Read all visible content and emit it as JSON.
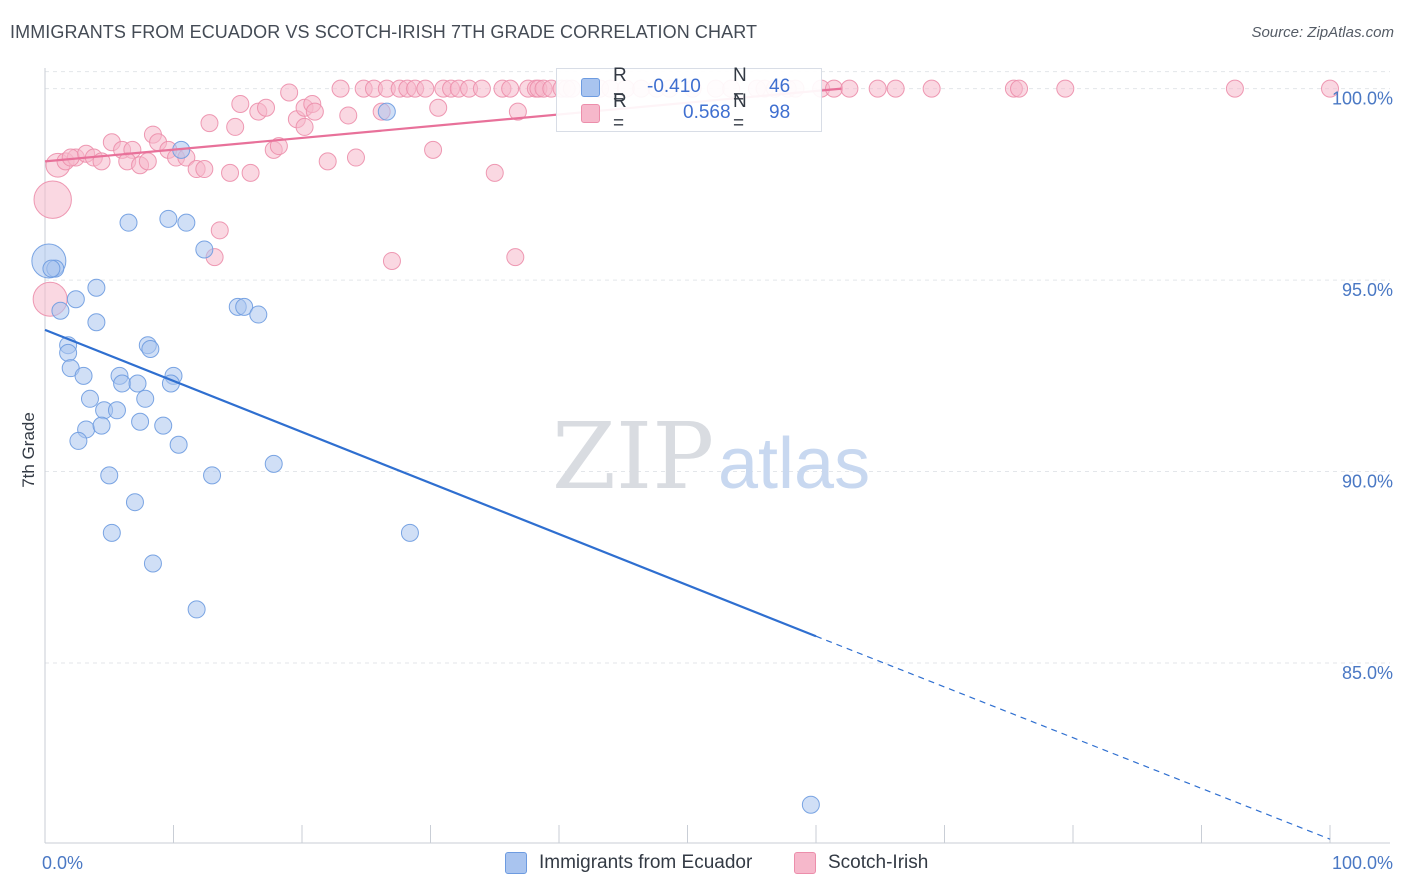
{
  "header": {
    "title": "IMMIGRANTS FROM ECUADOR VS SCOTCH-IRISH 7TH GRADE CORRELATION CHART",
    "source": "Source: ZipAtlas.com"
  },
  "watermark": {
    "zip": "ZIP",
    "atlas": "atlas"
  },
  "legend": {
    "rows": [
      {
        "label": "R =",
        "r": "-0.410",
        "n_label": "N =",
        "n": "46"
      },
      {
        "label": "R =",
        "r": "0.568",
        "n_label": "N =",
        "n": "98"
      }
    ]
  },
  "colors": {
    "ecuador_fill": "#a9c4ef",
    "ecuador_stroke": "#6d9be0",
    "ecuador_line": "#2f6fd0",
    "scotch_fill": "#f6b8cb",
    "scotch_stroke": "#ec8eab",
    "scotch_line": "#e8719a",
    "tick_label": "#4a78c4",
    "grid": "#e3e6ea"
  },
  "chart_data": {
    "type": "scatter",
    "title": "IMMIGRANTS FROM ECUADOR VS SCOTCH-IRISH 7TH GRADE CORRELATION CHART",
    "xlabel": "",
    "ylabel": "7th Grade",
    "xlim": [
      0,
      100
    ],
    "ylim": [
      80.3,
      100.8
    ],
    "x_tick_labels": [
      "0.0%",
      "100.0%"
    ],
    "y_ticks": [
      85,
      90,
      95,
      100
    ],
    "y_tick_labels": [
      "85.0%",
      "90.0%",
      "95.0%",
      "100.0%"
    ],
    "grid": true,
    "legend_position": "bottom-center",
    "series": [
      {
        "name": "Immigrants from Ecuador",
        "r": -0.41,
        "n": 46,
        "trend": {
          "x0": 0,
          "y0": 93.7,
          "x1": 60,
          "y1": 85.7,
          "dashed_to_x": 100,
          "dashed_to_y": 80.4
        },
        "points": [
          [
            0.3,
            95.5,
            2.0
          ],
          [
            0.8,
            95.3,
            1.0
          ],
          [
            0.5,
            95.3,
            1.0
          ],
          [
            1.2,
            94.2,
            1.0
          ],
          [
            2.4,
            94.5,
            1.0
          ],
          [
            4.0,
            94.8,
            1.0
          ],
          [
            4.0,
            93.9,
            1.0
          ],
          [
            1.8,
            93.3,
            1.0
          ],
          [
            1.8,
            93.1,
            1.0
          ],
          [
            2.0,
            92.7,
            1.0
          ],
          [
            3.0,
            92.5,
            1.0
          ],
          [
            5.8,
            92.5,
            1.0
          ],
          [
            6.0,
            92.3,
            1.0
          ],
          [
            7.2,
            92.3,
            1.0
          ],
          [
            3.5,
            91.9,
            1.0
          ],
          [
            7.8,
            91.9,
            1.0
          ],
          [
            4.6,
            91.6,
            1.0
          ],
          [
            5.6,
            91.6,
            1.0
          ],
          [
            7.4,
            91.3,
            1.0
          ],
          [
            9.2,
            91.2,
            1.0
          ],
          [
            3.2,
            91.1,
            1.0
          ],
          [
            4.4,
            91.2,
            1.0
          ],
          [
            2.6,
            90.8,
            1.0
          ],
          [
            10.4,
            90.7,
            1.0
          ],
          [
            5.0,
            89.9,
            1.0
          ],
          [
            13.0,
            89.9,
            1.0
          ],
          [
            7.0,
            89.2,
            1.0
          ],
          [
            5.2,
            88.4,
            1.0
          ],
          [
            8.4,
            87.6,
            1.0
          ],
          [
            11.8,
            86.4,
            1.0
          ],
          [
            6.5,
            96.5,
            1.0
          ],
          [
            9.6,
            96.6,
            1.0
          ],
          [
            11.0,
            96.5,
            1.0
          ],
          [
            12.4,
            95.8,
            1.0
          ],
          [
            15.0,
            94.3,
            1.0
          ],
          [
            15.5,
            94.3,
            1.0
          ],
          [
            16.6,
            94.1,
            1.0
          ],
          [
            8.0,
            93.3,
            1.0
          ],
          [
            8.2,
            93.2,
            1.0
          ],
          [
            10.0,
            92.5,
            1.0
          ],
          [
            9.8,
            92.3,
            1.0
          ],
          [
            10.6,
            98.4,
            1.0
          ],
          [
            26.6,
            99.4,
            1.0
          ],
          [
            17.8,
            90.2,
            1.0
          ],
          [
            28.4,
            88.4,
            1.0
          ],
          [
            59.6,
            81.3,
            1.0
          ]
        ]
      },
      {
        "name": "Scotch-Irish",
        "r": 0.568,
        "n": 98,
        "trend": {
          "x0": 0,
          "y0": 98.1,
          "x1": 62,
          "y1": 100.0
        },
        "points": [
          [
            0.6,
            97.1,
            2.2
          ],
          [
            0.4,
            94.5,
            2.0
          ],
          [
            1.0,
            98.0,
            1.4
          ],
          [
            1.6,
            98.1,
            1.0
          ],
          [
            2.4,
            98.2,
            1.0
          ],
          [
            2.0,
            98.2,
            1.0
          ],
          [
            3.2,
            98.3,
            1.0
          ],
          [
            3.8,
            98.2,
            1.0
          ],
          [
            4.4,
            98.1,
            1.0
          ],
          [
            5.2,
            98.6,
            1.0
          ],
          [
            6.0,
            98.4,
            1.0
          ],
          [
            6.8,
            98.4,
            1.0
          ],
          [
            6.4,
            98.1,
            1.0
          ],
          [
            7.4,
            98.0,
            1.0
          ],
          [
            8.0,
            98.1,
            1.0
          ],
          [
            8.4,
            98.8,
            1.0
          ],
          [
            8.8,
            98.6,
            1.0
          ],
          [
            9.6,
            98.4,
            1.0
          ],
          [
            10.2,
            98.2,
            1.0
          ],
          [
            11.0,
            98.2,
            1.0
          ],
          [
            11.8,
            97.9,
            1.0
          ],
          [
            12.4,
            97.9,
            1.0
          ],
          [
            12.8,
            99.1,
            1.0
          ],
          [
            13.6,
            96.3,
            1.0
          ],
          [
            13.2,
            95.6,
            1.0
          ],
          [
            14.4,
            97.8,
            1.0
          ],
          [
            14.8,
            99.0,
            1.0
          ],
          [
            15.2,
            99.6,
            1.0
          ],
          [
            16.0,
            97.8,
            1.0
          ],
          [
            16.6,
            99.4,
            1.0
          ],
          [
            17.2,
            99.5,
            1.0
          ],
          [
            17.8,
            98.4,
            1.0
          ],
          [
            18.2,
            98.5,
            1.0
          ],
          [
            19.0,
            99.9,
            1.0
          ],
          [
            19.6,
            99.2,
            1.0
          ],
          [
            20.2,
            99.0,
            1.0
          ],
          [
            20.2,
            99.5,
            1.0
          ],
          [
            20.8,
            99.6,
            1.0
          ],
          [
            21.0,
            99.4,
            1.0
          ],
          [
            22.0,
            98.1,
            1.0
          ],
          [
            23.0,
            100.0,
            1.0
          ],
          [
            23.6,
            99.3,
            1.0
          ],
          [
            24.2,
            98.2,
            1.0
          ],
          [
            24.8,
            100.0,
            1.0
          ],
          [
            25.6,
            100.0,
            1.0
          ],
          [
            26.2,
            99.4,
            1.0
          ],
          [
            26.6,
            100.0,
            1.0
          ],
          [
            27.0,
            95.5,
            1.0
          ],
          [
            27.6,
            100.0,
            1.0
          ],
          [
            28.2,
            100.0,
            1.0
          ],
          [
            28.8,
            100.0,
            1.0
          ],
          [
            29.6,
            100.0,
            1.0
          ],
          [
            30.2,
            98.4,
            1.0
          ],
          [
            30.6,
            99.5,
            1.0
          ],
          [
            31.0,
            100.0,
            1.0
          ],
          [
            31.6,
            100.0,
            1.0
          ],
          [
            32.2,
            100.0,
            1.0
          ],
          [
            33.0,
            100.0,
            1.0
          ],
          [
            34.0,
            100.0,
            1.0
          ],
          [
            35.0,
            97.8,
            1.0
          ],
          [
            35.6,
            100.0,
            1.0
          ],
          [
            36.2,
            100.0,
            1.0
          ],
          [
            36.6,
            95.6,
            1.0
          ],
          [
            36.8,
            99.4,
            1.0
          ],
          [
            37.6,
            100.0,
            1.0
          ],
          [
            38.2,
            100.0,
            1.0
          ],
          [
            38.4,
            100.0,
            1.0
          ],
          [
            38.8,
            100.0,
            1.0
          ],
          [
            39.4,
            100.0,
            1.0
          ],
          [
            40.2,
            100.0,
            1.0
          ],
          [
            40.6,
            100.0,
            1.0
          ],
          [
            41.0,
            100.0,
            1.0
          ],
          [
            42.4,
            100.0,
            1.0
          ],
          [
            43.2,
            100.0,
            1.0
          ],
          [
            44.0,
            100.0,
            1.0
          ],
          [
            45.2,
            100.0,
            1.0
          ],
          [
            46.4,
            100.0,
            1.0
          ],
          [
            47.6,
            100.0,
            1.0
          ],
          [
            48.6,
            100.0,
            1.0
          ],
          [
            50.4,
            100.0,
            1.0
          ],
          [
            52.2,
            100.0,
            1.0
          ],
          [
            53.4,
            100.0,
            1.0
          ],
          [
            55.4,
            100.0,
            1.0
          ],
          [
            56.0,
            100.0,
            1.0
          ],
          [
            56.8,
            100.0,
            1.0
          ],
          [
            57.8,
            100.0,
            1.0
          ],
          [
            58.4,
            100.0,
            1.0
          ],
          [
            60.4,
            100.0,
            1.0
          ],
          [
            61.4,
            100.0,
            1.0
          ],
          [
            62.6,
            100.0,
            1.0
          ],
          [
            64.8,
            100.0,
            1.0
          ],
          [
            66.2,
            100.0,
            1.0
          ],
          [
            69.0,
            100.0,
            1.0
          ],
          [
            75.4,
            100.0,
            1.0
          ],
          [
            75.8,
            100.0,
            1.0
          ],
          [
            79.4,
            100.0,
            1.0
          ],
          [
            92.6,
            100.0,
            1.0
          ],
          [
            100.0,
            100.0,
            1.0
          ]
        ]
      }
    ]
  }
}
